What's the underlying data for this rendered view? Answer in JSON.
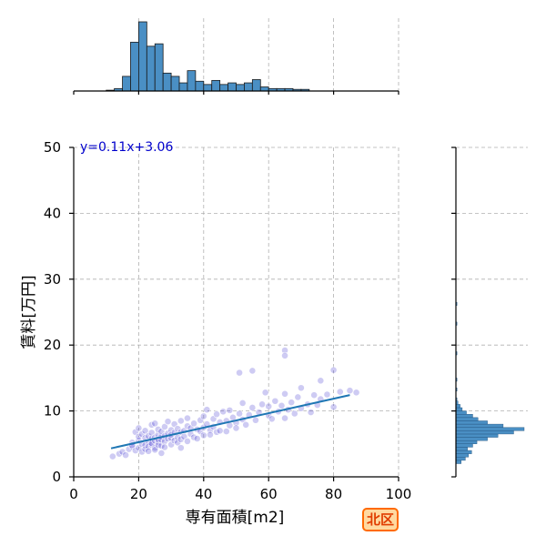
{
  "chart_data": {
    "type": "scatter",
    "xlabel": "専有面積[m2]",
    "ylabel": "賃料[万円]",
    "xlim": [
      0,
      100
    ],
    "ylim": [
      0,
      50
    ],
    "x_ticks": [
      "0",
      "20",
      "40",
      "60",
      "80",
      "100"
    ],
    "y_ticks": [
      "0",
      "10",
      "20",
      "30",
      "40",
      "50"
    ],
    "grid": true,
    "regression": {
      "equation": "y=0.11x+3.06",
      "slope": 0.11,
      "intercept": 3.06,
      "x_range": [
        11.5,
        85
      ]
    },
    "point_color": "#3a2fcf",
    "line_color": "#1f77b4",
    "hist_color": "#4a8fc4",
    "points": [
      [
        12,
        3.1
      ],
      [
        14,
        3.5
      ],
      [
        15,
        3.8
      ],
      [
        16,
        3.3
      ],
      [
        17,
        4.2
      ],
      [
        18,
        4.6
      ],
      [
        18,
        5.2
      ],
      [
        19,
        6.8
      ],
      [
        19,
        4.0
      ],
      [
        20,
        5.5
      ],
      [
        20,
        4.4
      ],
      [
        20,
        6.1
      ],
      [
        20,
        7.4
      ],
      [
        21,
        5.0
      ],
      [
        21,
        3.8
      ],
      [
        21,
        6.5
      ],
      [
        22,
        4.8
      ],
      [
        22,
        5.9
      ],
      [
        22,
        4.2
      ],
      [
        22,
        7.0
      ],
      [
        23,
        5.3
      ],
      [
        23,
        6.2
      ],
      [
        23,
        4.6
      ],
      [
        23,
        3.9
      ],
      [
        24,
        5.8
      ],
      [
        24,
        4.9
      ],
      [
        24,
        6.7
      ],
      [
        24,
        7.9
      ],
      [
        24,
        5.1
      ],
      [
        25,
        4.4
      ],
      [
        25,
        6.0
      ],
      [
        25,
        5.5
      ],
      [
        25,
        8.1
      ],
      [
        25,
        4.1
      ],
      [
        26,
        5.2
      ],
      [
        26,
        6.4
      ],
      [
        26,
        4.8
      ],
      [
        26,
        7.2
      ],
      [
        26,
        5.7
      ],
      [
        27,
        6.1
      ],
      [
        27,
        4.7
      ],
      [
        27,
        5.6
      ],
      [
        27,
        6.9
      ],
      [
        28,
        5.4
      ],
      [
        28,
        7.6
      ],
      [
        28,
        6.2
      ],
      [
        28,
        4.5
      ],
      [
        29,
        5.8
      ],
      [
        29,
        6.6
      ],
      [
        29,
        8.4
      ],
      [
        30,
        5.9
      ],
      [
        30,
        7.1
      ],
      [
        30,
        6.4
      ],
      [
        30,
        4.9
      ],
      [
        31,
        6.7
      ],
      [
        31,
        5.5
      ],
      [
        31,
        8.0
      ],
      [
        32,
        6.0
      ],
      [
        32,
        7.3
      ],
      [
        32,
        5.2
      ],
      [
        33,
        6.8
      ],
      [
        33,
        8.5
      ],
      [
        33,
        5.7
      ],
      [
        34,
        7.0
      ],
      [
        34,
        6.1
      ],
      [
        35,
        7.7
      ],
      [
        35,
        5.4
      ],
      [
        35,
        8.9
      ],
      [
        36,
        6.5
      ],
      [
        36,
        7.4
      ],
      [
        37,
        8.1
      ],
      [
        37,
        6.0
      ],
      [
        38,
        7.2
      ],
      [
        38,
        5.8
      ],
      [
        39,
        8.6
      ],
      [
        39,
        6.9
      ],
      [
        40,
        7.5
      ],
      [
        40,
        9.2
      ],
      [
        40,
        6.3
      ],
      [
        41,
        8.0
      ],
      [
        41,
        10.2
      ],
      [
        42,
        7.1
      ],
      [
        42,
        6.4
      ],
      [
        43,
        8.8
      ],
      [
        43,
        7.6
      ],
      [
        44,
        9.5
      ],
      [
        44,
        6.8
      ],
      [
        45,
        8.3
      ],
      [
        45,
        7.0
      ],
      [
        46,
        9.9
      ],
      [
        47,
        8.5
      ],
      [
        47,
        6.9
      ],
      [
        48,
        7.8
      ],
      [
        48,
        10.1
      ],
      [
        49,
        9.0
      ],
      [
        50,
        8.2
      ],
      [
        50,
        7.4
      ],
      [
        51,
        15.8
      ],
      [
        51,
        9.6
      ],
      [
        52,
        8.7
      ],
      [
        52,
        11.2
      ],
      [
        53,
        7.9
      ],
      [
        54,
        9.4
      ],
      [
        55,
        10.5
      ],
      [
        55,
        16.1
      ],
      [
        56,
        8.6
      ],
      [
        57,
        9.8
      ],
      [
        58,
        11.0
      ],
      [
        59,
        12.8
      ],
      [
        60,
        9.3
      ],
      [
        60,
        10.7
      ],
      [
        61,
        8.8
      ],
      [
        62,
        11.5
      ],
      [
        63,
        9.9
      ],
      [
        64,
        10.8
      ],
      [
        65,
        19.2
      ],
      [
        65,
        12.6
      ],
      [
        65,
        18.4
      ],
      [
        65,
        8.9
      ],
      [
        66,
        10.2
      ],
      [
        67,
        11.3
      ],
      [
        68,
        9.6
      ],
      [
        69,
        12.1
      ],
      [
        70,
        10.4
      ],
      [
        70,
        13.5
      ],
      [
        72,
        11.0
      ],
      [
        73,
        9.8
      ],
      [
        74,
        12.4
      ],
      [
        75,
        10.9
      ],
      [
        76,
        14.6
      ],
      [
        76,
        11.8
      ],
      [
        78,
        12.5
      ],
      [
        80,
        10.6
      ],
      [
        80,
        16.2
      ],
      [
        82,
        12.9
      ],
      [
        85,
        13.1
      ],
      [
        87,
        12.8
      ],
      [
        18,
        4.8
      ],
      [
        27,
        3.6
      ],
      [
        33,
        4.4
      ]
    ],
    "x_hist": {
      "bin_start": 0,
      "bin_width": 2.5,
      "counts": [
        0,
        0,
        0,
        0,
        1,
        3,
        18,
        60,
        85,
        55,
        58,
        22,
        18,
        10,
        25,
        12,
        8,
        13,
        8,
        10,
        8,
        10,
        14,
        5,
        3,
        3,
        3,
        2,
        2,
        0,
        0,
        0
      ]
    },
    "y_hist": {
      "bin_start": 2,
      "bin_width": 0.5,
      "counts": [
        5,
        9,
        12,
        15,
        11,
        16,
        20,
        30,
        40,
        55,
        65,
        45,
        30,
        21,
        16,
        10,
        6,
        4,
        2,
        1,
        0,
        0,
        1,
        0,
        0,
        1,
        0,
        0,
        0,
        0,
        0,
        0,
        0,
        1,
        0,
        0,
        0,
        0,
        0,
        0,
        0,
        0,
        1,
        0,
        0,
        0,
        0,
        0,
        1
      ]
    }
  },
  "badge": {
    "label": "北区"
  }
}
